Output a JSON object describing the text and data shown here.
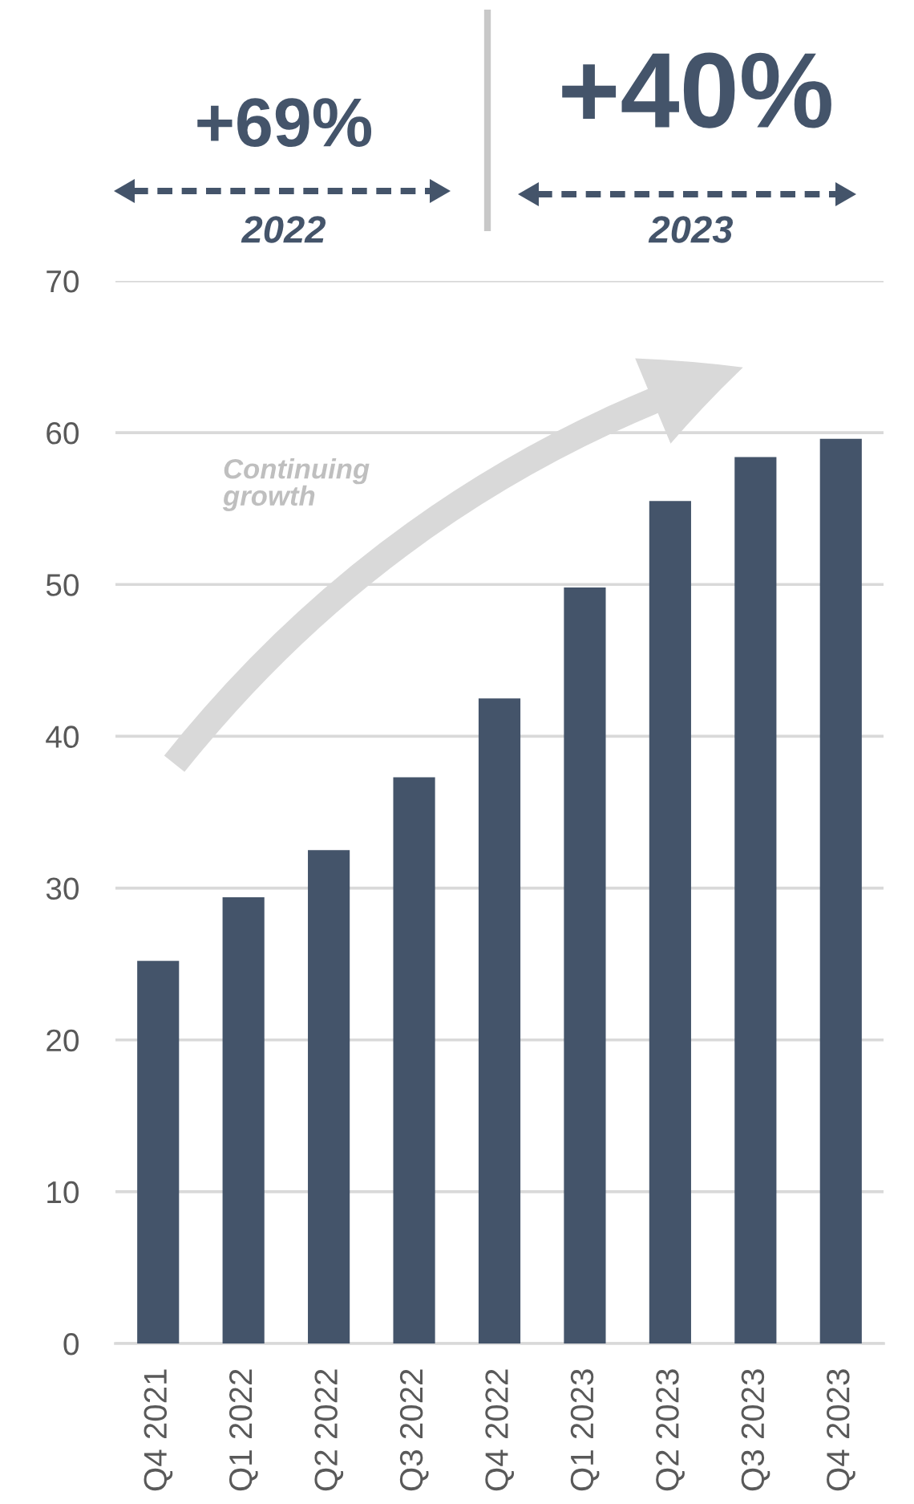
{
  "chart_data": {
    "type": "bar",
    "categories": [
      "Q4 2021",
      "Q1 2022",
      "Q2 2022",
      "Q3 2022",
      "Q4 2022",
      "Q1 2023",
      "Q2 2023",
      "Q3 2023",
      "Q4 2023"
    ],
    "values": [
      25.2,
      29.4,
      32.5,
      37.3,
      42.5,
      49.8,
      55.5,
      58.4,
      59.6
    ],
    "color": "#44546a",
    "ylim": [
      0,
      70
    ],
    "yticks": [
      0,
      10,
      20,
      30,
      40,
      50,
      60,
      70
    ],
    "grid": "y",
    "annotations": [
      "+69%",
      "2022",
      "+40%",
      "2023",
      "Continuing\ngrowth"
    ]
  }
}
